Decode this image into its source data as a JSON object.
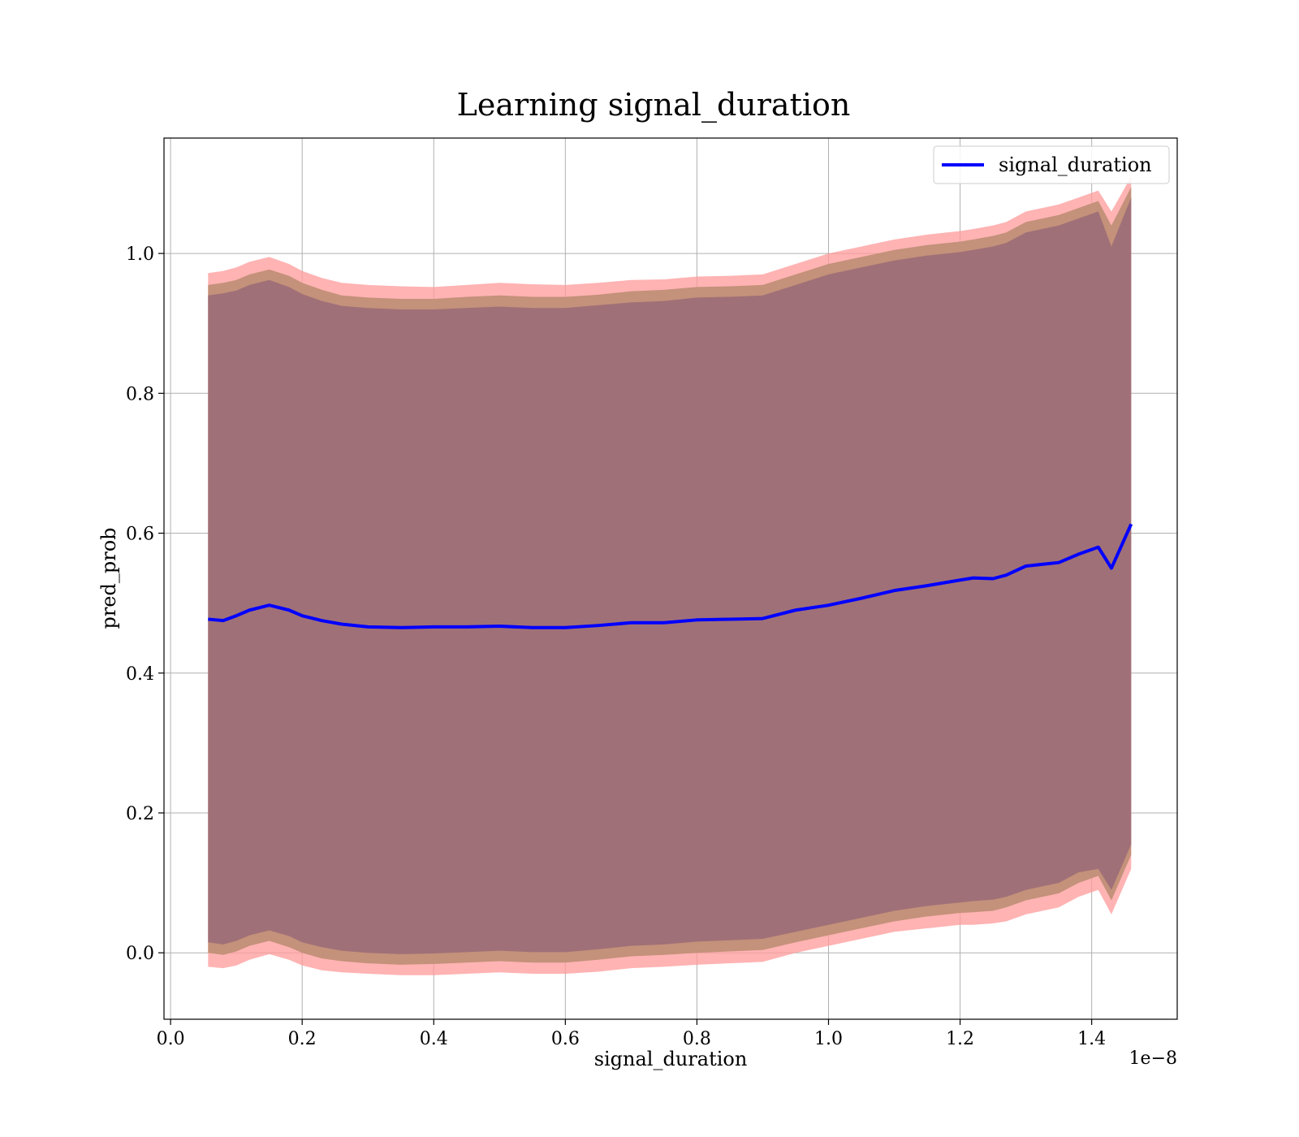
{
  "chart_data": {
    "type": "line",
    "title": "Learning signal_duration",
    "xlabel": "signal_duration",
    "ylabel": "pred_prob",
    "x_offset_text": "1e−8",
    "xlim": [
      -0.01,
      1.53
    ],
    "ylim": [
      -0.095,
      1.165
    ],
    "xticks": [
      0.0,
      0.2,
      0.4,
      0.6,
      0.8,
      1.0,
      1.2,
      1.4
    ],
    "xtick_labels": [
      "0.0",
      "0.2",
      "0.4",
      "0.6",
      "0.8",
      "1.0",
      "1.2",
      "1.4"
    ],
    "yticks": [
      0.0,
      0.2,
      0.4,
      0.6,
      0.8,
      1.0
    ],
    "ytick_labels": [
      "0.0",
      "0.2",
      "0.4",
      "0.6",
      "0.8",
      "1.0"
    ],
    "grid": true,
    "legend": {
      "placement": "top-right",
      "entries": [
        "signal_duration"
      ]
    },
    "colors": {
      "line": "#0000ff",
      "band_outer": "#ff9a9a",
      "band_mid": "#c4917a",
      "band_inner": "#a07078"
    },
    "series": [
      {
        "name": "signal_duration",
        "x": [
          0.057,
          0.08,
          0.1,
          0.12,
          0.15,
          0.18,
          0.2,
          0.23,
          0.26,
          0.3,
          0.35,
          0.4,
          0.45,
          0.5,
          0.55,
          0.6,
          0.65,
          0.7,
          0.75,
          0.8,
          0.85,
          0.9,
          0.95,
          1.0,
          1.05,
          1.1,
          1.15,
          1.2,
          1.22,
          1.25,
          1.27,
          1.3,
          1.35,
          1.38,
          1.41,
          1.43,
          1.46
        ],
        "y": [
          0.477,
          0.475,
          0.482,
          0.49,
          0.497,
          0.49,
          0.482,
          0.475,
          0.47,
          0.466,
          0.465,
          0.466,
          0.466,
          0.467,
          0.465,
          0.465,
          0.468,
          0.472,
          0.472,
          0.476,
          0.477,
          0.478,
          0.49,
          0.497,
          0.507,
          0.518,
          0.525,
          0.533,
          0.536,
          0.535,
          0.54,
          0.553,
          0.558,
          0.57,
          0.58,
          0.55,
          0.613
        ],
        "band_outer_upper": [
          0.972,
          0.975,
          0.98,
          0.988,
          0.995,
          0.985,
          0.975,
          0.965,
          0.958,
          0.955,
          0.953,
          0.952,
          0.955,
          0.958,
          0.956,
          0.955,
          0.958,
          0.962,
          0.963,
          0.967,
          0.968,
          0.97,
          0.985,
          1.0,
          1.01,
          1.02,
          1.027,
          1.032,
          1.035,
          1.04,
          1.045,
          1.06,
          1.07,
          1.08,
          1.09,
          1.06,
          1.11
        ],
        "band_outer_lower": [
          -0.02,
          -0.022,
          -0.018,
          -0.01,
          -0.002,
          -0.01,
          -0.018,
          -0.025,
          -0.028,
          -0.03,
          -0.032,
          -0.032,
          -0.03,
          -0.028,
          -0.03,
          -0.03,
          -0.027,
          -0.022,
          -0.02,
          -0.017,
          -0.015,
          -0.013,
          0.0,
          0.01,
          0.02,
          0.03,
          0.035,
          0.04,
          0.04,
          0.042,
          0.045,
          0.055,
          0.065,
          0.08,
          0.09,
          0.055,
          0.12
        ],
        "band_mid_upper": [
          0.955,
          0.958,
          0.962,
          0.97,
          0.977,
          0.968,
          0.958,
          0.948,
          0.94,
          0.937,
          0.935,
          0.935,
          0.938,
          0.94,
          0.938,
          0.938,
          0.941,
          0.946,
          0.948,
          0.952,
          0.953,
          0.955,
          0.97,
          0.985,
          0.995,
          1.005,
          1.012,
          1.017,
          1.02,
          1.025,
          1.03,
          1.045,
          1.055,
          1.065,
          1.075,
          1.04,
          1.095
        ],
        "band_mid_lower": [
          0.0,
          -0.003,
          0.002,
          0.01,
          0.017,
          0.008,
          0.0,
          -0.008,
          -0.012,
          -0.015,
          -0.017,
          -0.016,
          -0.014,
          -0.012,
          -0.014,
          -0.014,
          -0.01,
          -0.005,
          -0.003,
          0.0,
          0.002,
          0.004,
          0.015,
          0.025,
          0.035,
          0.045,
          0.052,
          0.057,
          0.058,
          0.06,
          0.065,
          0.075,
          0.085,
          0.1,
          0.11,
          0.075,
          0.14
        ],
        "band_inner_upper": [
          0.94,
          0.943,
          0.947,
          0.955,
          0.962,
          0.952,
          0.942,
          0.932,
          0.925,
          0.922,
          0.92,
          0.92,
          0.922,
          0.924,
          0.922,
          0.922,
          0.926,
          0.93,
          0.932,
          0.937,
          0.938,
          0.94,
          0.955,
          0.97,
          0.98,
          0.99,
          0.997,
          1.002,
          1.005,
          1.01,
          1.015,
          1.03,
          1.04,
          1.05,
          1.06,
          1.01,
          1.08
        ],
        "band_inner_lower": [
          0.015,
          0.012,
          0.017,
          0.025,
          0.032,
          0.024,
          0.015,
          0.008,
          0.003,
          0.0,
          -0.002,
          -0.001,
          0.001,
          0.003,
          0.001,
          0.001,
          0.005,
          0.01,
          0.012,
          0.016,
          0.018,
          0.02,
          0.03,
          0.04,
          0.05,
          0.06,
          0.067,
          0.072,
          0.074,
          0.076,
          0.08,
          0.09,
          0.1,
          0.115,
          0.12,
          0.09,
          0.155
        ]
      }
    ]
  }
}
